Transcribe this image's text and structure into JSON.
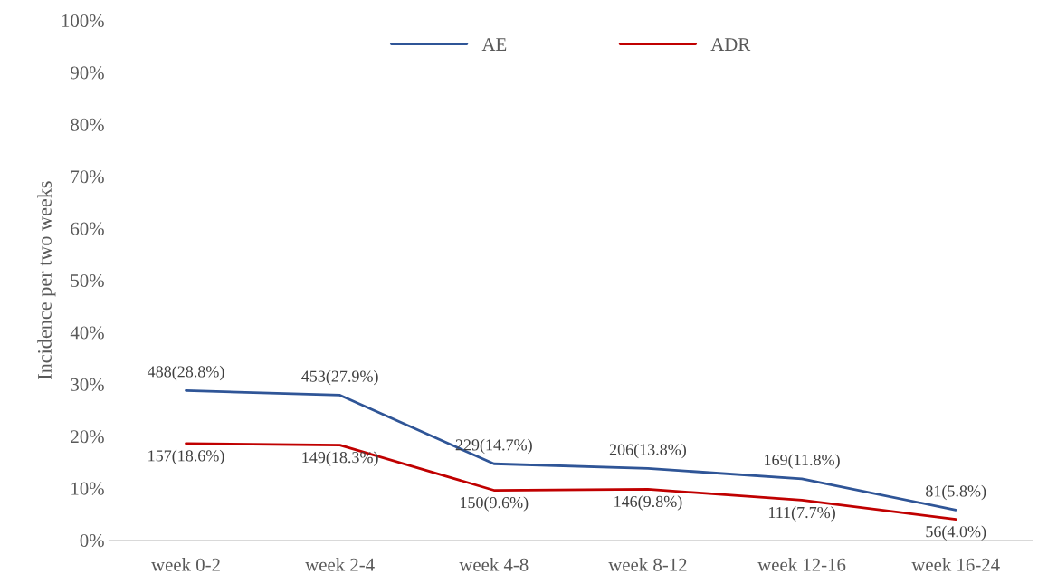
{
  "chart_data": {
    "type": "line",
    "ylabel": "Incidence per two weeks",
    "categories": [
      "week 0-2",
      "week 2-4",
      "week 4-8",
      "week 8-12",
      "week 12-16",
      "week 16-24"
    ],
    "series": [
      {
        "name": "AE",
        "color": "#2f5597",
        "values": [
          28.8,
          27.9,
          14.7,
          13.8,
          11.8,
          5.8
        ],
        "value_labels": [
          "488(28.8%)",
          "453(27.9%)",
          "229(14.7%)",
          "206(13.8%)",
          "169(11.8%)",
          "81(5.8%)"
        ]
      },
      {
        "name": "ADR",
        "color": "#c00000",
        "values": [
          18.6,
          18.3,
          9.6,
          9.8,
          7.7,
          4.0
        ],
        "value_labels": [
          "157(18.6%)",
          "149(18.3%)",
          "150(9.6%)",
          "146(9.8%)",
          "111(7.7%)",
          "56(4.0%)"
        ]
      }
    ],
    "ylim": [
      0,
      100
    ],
    "yticks": [
      {
        "value": 0,
        "label": "0%"
      },
      {
        "value": 10,
        "label": "10%"
      },
      {
        "value": 20,
        "label": "20%"
      },
      {
        "value": 30,
        "label": "30%"
      },
      {
        "value": 40,
        "label": "40%"
      },
      {
        "value": 50,
        "label": "50%"
      },
      {
        "value": 60,
        "label": "60%"
      },
      {
        "value": 70,
        "label": "70%"
      },
      {
        "value": 80,
        "label": "80%"
      },
      {
        "value": 90,
        "label": "90%"
      },
      {
        "value": 100,
        "label": "100%"
      }
    ],
    "grid": false,
    "legend": "top",
    "marker": "none",
    "line_style": "solid"
  }
}
